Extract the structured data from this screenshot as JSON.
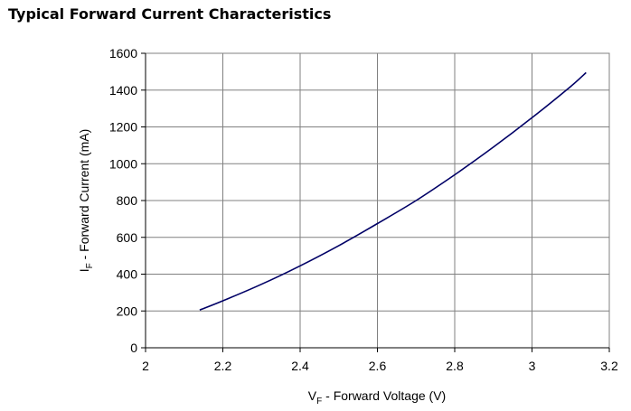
{
  "page_title": "Typical Forward Current Characteristics",
  "chart_data": {
    "type": "line",
    "title": "Typical Forward Current Characteristics",
    "xlabel": {
      "main": "V",
      "sub": "F",
      "rest": " - Forward Voltage (V)"
    },
    "ylabel": {
      "main": "I",
      "sub": "F",
      "rest": " - Forward Current (mA)"
    },
    "xlim": [
      2,
      3.2
    ],
    "ylim": [
      0,
      1600
    ],
    "x_ticks": [
      2,
      2.2,
      2.4,
      2.6,
      2.8,
      3,
      3.2
    ],
    "x_tick_labels": [
      "2",
      "2.2",
      "2.4",
      "2.6",
      "2.8",
      "3",
      "3.2"
    ],
    "y_ticks": [
      0,
      200,
      400,
      600,
      800,
      1000,
      1200,
      1400,
      1600
    ],
    "y_tick_labels": [
      "0",
      "200",
      "400",
      "600",
      "800",
      "1000",
      "1200",
      "1400",
      "1600"
    ],
    "grid": true,
    "line_color": "#000066",
    "series": [
      {
        "x": [
          2.14,
          2.2,
          2.3,
          2.4,
          2.5,
          2.6,
          2.7,
          2.8,
          2.9,
          3.0,
          3.1,
          3.14
        ],
        "values": [
          205,
          255,
          345,
          445,
          555,
          675,
          800,
          940,
          1090,
          1250,
          1420,
          1495
        ]
      }
    ]
  }
}
